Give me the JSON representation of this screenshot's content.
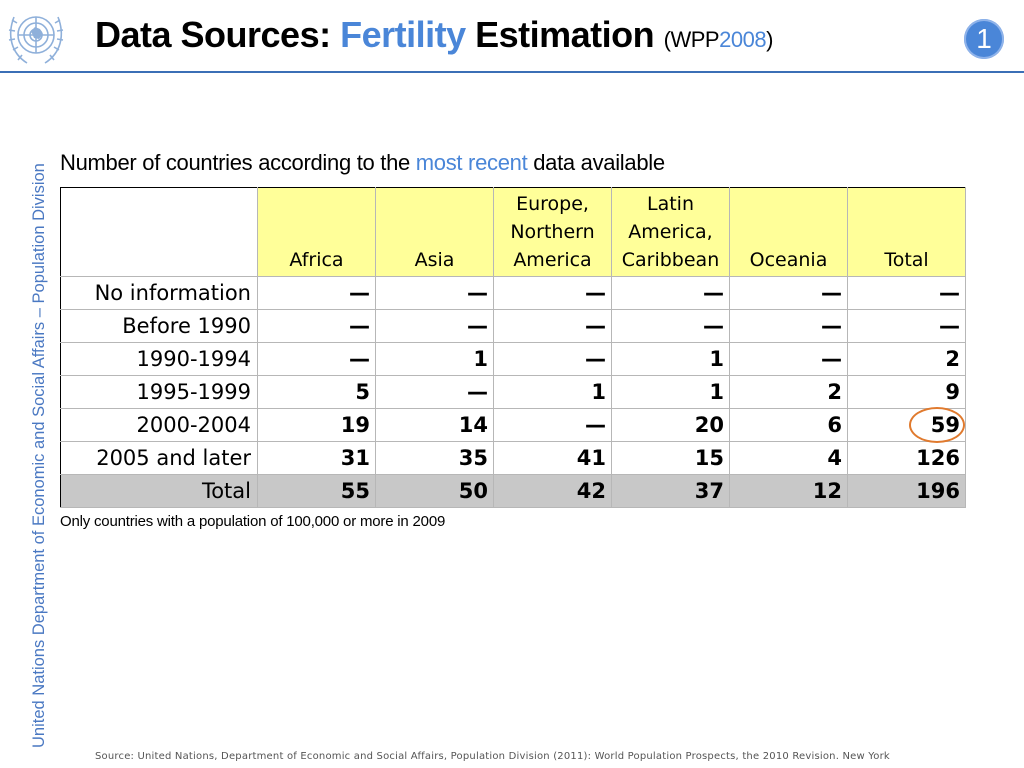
{
  "header": {
    "title_part1": "Data Sources: ",
    "title_accent": "Fertility",
    "title_part2": " Estimation ",
    "paren_open": "(",
    "paren_wpp": "WPP",
    "paren_year": "2008",
    "paren_close": ")",
    "slide_number": "1",
    "accent_color": "#4a86d8"
  },
  "sidebar": {
    "text": "United Nations Department of Economic and Social Affairs – Population Division"
  },
  "subtitle": {
    "before": "Number of countries according to the ",
    "accent": "most recent",
    "after": " data available"
  },
  "table": {
    "columns": [
      [
        "Africa"
      ],
      [
        "Asia"
      ],
      [
        "Europe,",
        "Northern",
        "America"
      ],
      [
        "Latin",
        "America,",
        "Caribbean"
      ],
      [
        "Oceania"
      ],
      [
        "Total"
      ]
    ],
    "rows": [
      {
        "label": "No information",
        "values": [
          "—",
          "—",
          "—",
          "—",
          "—",
          "—"
        ]
      },
      {
        "label": "Before 1990",
        "values": [
          "—",
          "—",
          "—",
          "—",
          "—",
          "—"
        ]
      },
      {
        "label": "1990-1994",
        "values": [
          "—",
          "1",
          "—",
          "1",
          "—",
          "2"
        ]
      },
      {
        "label": "1995-1999",
        "values": [
          "5",
          "—",
          "1",
          "1",
          "2",
          "9"
        ]
      },
      {
        "label": "2000-2004",
        "values": [
          "19",
          "14",
          "—",
          "20",
          "6",
          "59"
        ]
      },
      {
        "label": "2005 and later",
        "values": [
          "31",
          "35",
          "41",
          "15",
          "4",
          "126"
        ]
      }
    ],
    "total_row": {
      "label": "Total",
      "values": [
        "55",
        "50",
        "42",
        "37",
        "12",
        "196"
      ]
    },
    "header_fill": "#ffff99",
    "total_fill": "#c8c8c8",
    "highlight_color": "#e07a2e"
  },
  "note": "Only countries with a population of 100,000 or more in 2009",
  "source": "Source: United Nations, Department of Economic and Social Affairs, Population Division (2011): World Population Prospects, the 2010 Revision. New York"
}
